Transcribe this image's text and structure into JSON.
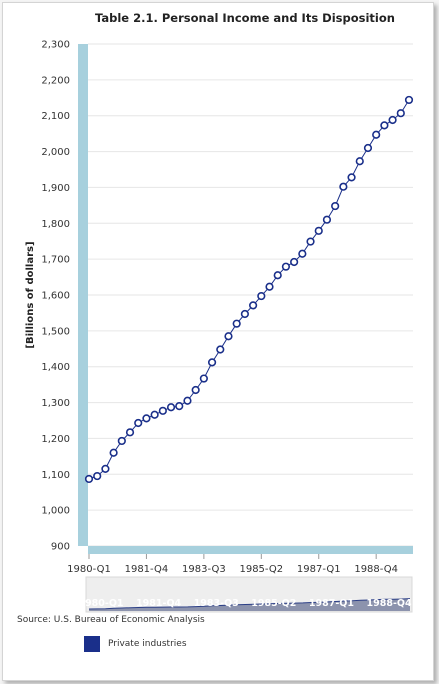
{
  "title": "Table 2.1. Personal Income and Its Disposition",
  "source": "Source: U.S. Bureau of Economic Analysis",
  "colors": {
    "series": "#1a2f8a",
    "axis_band": "#a7d0dd",
    "navigator_fill": "#8c93ad",
    "navigator_line": "#2c3f86"
  },
  "chart_data": {
    "type": "line",
    "title": "Table 2.1. Personal Income and Its Disposition",
    "ylabel": "[Billions of dollars]",
    "xlabel": "",
    "ylim": [
      900,
      2300
    ],
    "yticks": [
      900,
      1000,
      1100,
      1200,
      1300,
      1400,
      1500,
      1600,
      1700,
      1800,
      1900,
      2000,
      2100,
      2200,
      2300
    ],
    "ytick_labels": [
      "900",
      "1,000",
      "1,100",
      "1,200",
      "1,300",
      "1,400",
      "1,500",
      "1,600",
      "1,700",
      "1,800",
      "1,900",
      "2,000",
      "2,100",
      "2,200",
      "2,300"
    ],
    "xtick_labels": [
      "1980-Q1",
      "1981-Q4",
      "1983-Q3",
      "1985-Q2",
      "1987-Q1",
      "1988-Q4"
    ],
    "xtick_index": [
      0,
      7,
      14,
      21,
      28,
      35
    ],
    "grid": true,
    "legend_position": "bottom-left",
    "series": [
      {
        "name": "Private industries",
        "x": [
          "1980-Q1",
          "1980-Q2",
          "1980-Q3",
          "1980-Q4",
          "1981-Q1",
          "1981-Q2",
          "1981-Q3",
          "1981-Q4",
          "1982-Q1",
          "1982-Q2",
          "1982-Q3",
          "1982-Q4",
          "1983-Q1",
          "1983-Q2",
          "1983-Q3",
          "1983-Q4",
          "1984-Q1",
          "1984-Q2",
          "1984-Q3",
          "1984-Q4",
          "1985-Q1",
          "1985-Q2",
          "1985-Q3",
          "1985-Q4",
          "1986-Q1",
          "1986-Q2",
          "1986-Q3",
          "1986-Q4",
          "1987-Q1",
          "1987-Q2",
          "1987-Q3",
          "1987-Q4",
          "1988-Q1",
          "1988-Q2",
          "1988-Q3",
          "1988-Q4",
          "1989-Q1",
          "1989-Q2",
          "1989-Q3",
          "1989-Q4"
        ],
        "values": [
          1087,
          1095,
          1115,
          1160,
          1193,
          1217,
          1243,
          1256,
          1266,
          1277,
          1287,
          1290,
          1305,
          1335,
          1367,
          1412,
          1448,
          1485,
          1520,
          1547,
          1571,
          1597,
          1623,
          1655,
          1679,
          1692,
          1715,
          1749,
          1779,
          1810,
          1848,
          1902,
          1928,
          1973,
          2010,
          2047,
          2073,
          2088,
          2107,
          2144
        ]
      }
    ],
    "navigator": {
      "xtick_labels": [
        "1980-Q1",
        "1981-Q4",
        "1983-Q3",
        "1985-Q2",
        "1987-Q1",
        "1988-Q4"
      ]
    }
  }
}
